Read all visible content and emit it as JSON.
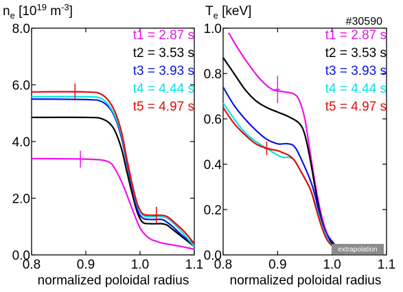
{
  "shot": "#30590",
  "extrapolation_label": "extrapolation",
  "colors": {
    "t1": "#ee11ee",
    "t2": "#000000",
    "t3": "#0a14e6",
    "t4": "#00e5e5",
    "t5": "#e60a0a"
  },
  "chart_data": [
    {
      "type": "line",
      "title": "n_e [10^19 m^-3]",
      "title_parts": {
        "base": "n",
        "sub": "e",
        "pre": " [10",
        "sup1": "19",
        "mid": " m",
        "sup2": "-3",
        "post": "]"
      },
      "xlabel": "normalized poloidal radius",
      "ylabel": "",
      "xlim": [
        0.8,
        1.1
      ],
      "ylim": [
        0.0,
        8.0
      ],
      "xticks": [
        "0.8",
        "0.9",
        "1.0",
        "1.1"
      ],
      "yticks": [
        "0.0",
        "2.0",
        "4.0",
        "6.0",
        "8.0"
      ],
      "legend_placement": "top-right",
      "series": [
        {
          "name": "t1 = 2.87 s",
          "key": "t1",
          "x": [
            0.8,
            0.9,
            0.94,
            0.955,
            0.97,
            0.98,
            0.99,
            1.0,
            1.01,
            1.02,
            1.03,
            1.04,
            1.06,
            1.08,
            1.1
          ],
          "y": [
            3.4,
            3.38,
            3.3,
            3.0,
            2.4,
            1.9,
            1.4,
            0.95,
            0.7,
            0.55,
            0.48,
            0.42,
            0.35,
            0.28,
            0.2
          ],
          "errorbar": {
            "x": 0.89,
            "y": 3.38,
            "dy": 0.3,
            "dx": 0.01
          }
        },
        {
          "name": "t2 = 3.53 s",
          "key": "t2",
          "x": [
            0.8,
            0.9,
            0.93,
            0.95,
            0.965,
            0.975,
            0.985,
            0.995,
            1.005,
            1.02,
            1.04,
            1.05,
            1.06,
            1.08,
            1.1
          ],
          "y": [
            4.85,
            4.85,
            4.8,
            4.5,
            3.8,
            3.0,
            2.2,
            1.5,
            1.15,
            1.1,
            1.1,
            1.05,
            0.9,
            0.6,
            0.3
          ]
        },
        {
          "name": "t3 = 3.93 s",
          "key": "t3",
          "x": [
            0.8,
            0.9,
            0.93,
            0.95,
            0.965,
            0.975,
            0.985,
            0.995,
            1.005,
            1.02,
            1.04,
            1.05,
            1.06,
            1.08,
            1.1
          ],
          "y": [
            5.5,
            5.48,
            5.4,
            5.0,
            4.2,
            3.3,
            2.4,
            1.6,
            1.3,
            1.25,
            1.25,
            1.15,
            1.0,
            0.65,
            0.4
          ]
        },
        {
          "name": "t4 = 4.44 s",
          "key": "t4",
          "x": [
            0.8,
            0.9,
            0.93,
            0.95,
            0.965,
            0.975,
            0.985,
            0.995,
            1.005,
            1.02,
            1.04,
            1.05,
            1.06,
            1.08,
            1.1
          ],
          "y": [
            5.58,
            5.58,
            5.5,
            5.05,
            4.3,
            3.4,
            2.5,
            1.75,
            1.4,
            1.35,
            1.35,
            1.3,
            1.15,
            0.75,
            0.3
          ]
        },
        {
          "name": "t5 = 4.97 s",
          "key": "t5",
          "x": [
            0.8,
            0.9,
            0.93,
            0.95,
            0.965,
            0.975,
            0.985,
            0.995,
            1.005,
            1.02,
            1.04,
            1.05,
            1.06,
            1.08,
            1.1
          ],
          "y": [
            5.75,
            5.75,
            5.65,
            5.2,
            4.4,
            3.45,
            2.55,
            1.8,
            1.45,
            1.4,
            1.4,
            1.35,
            1.2,
            0.85,
            0.4
          ],
          "errorbar": {
            "x": 0.88,
            "y": 5.75,
            "dy": 0.3,
            "dx": 0.01
          },
          "errorbar2": {
            "x": 1.03,
            "y": 1.4,
            "dy": 0.3,
            "dx": 0.01
          }
        }
      ]
    },
    {
      "type": "line",
      "title": "T_e [keV]",
      "title_parts": {
        "base": "T",
        "sub": "e",
        "post": " [keV]"
      },
      "xlabel": "normalized poloidal radius",
      "ylabel": "",
      "xlim": [
        0.8,
        1.1
      ],
      "ylim": [
        0.0,
        1.0
      ],
      "xticks": [
        "0.8",
        "0.9",
        "1.0",
        "1.1"
      ],
      "yticks": [
        "0.0",
        "0.2",
        "0.4",
        "0.6",
        "0.8",
        "1.0"
      ],
      "legend_placement": "top-right",
      "series": [
        {
          "name": "t1 = 2.87 s",
          "key": "t1",
          "x": [
            0.81,
            0.83,
            0.85,
            0.87,
            0.89,
            0.91,
            0.93,
            0.94,
            0.95,
            0.96,
            0.97,
            0.98,
            0.99,
            1.0,
            1.01
          ],
          "y": [
            0.98,
            0.9,
            0.83,
            0.77,
            0.73,
            0.72,
            0.71,
            0.68,
            0.6,
            0.45,
            0.3,
            0.18,
            0.1,
            0.06,
            0.03
          ],
          "errorbar": {
            "x": 0.9,
            "y": 0.73,
            "dy": 0.06,
            "dx": 0.005
          }
        },
        {
          "name": "t2 = 3.53 s",
          "key": "t2",
          "x": [
            0.8,
            0.82,
            0.84,
            0.86,
            0.88,
            0.9,
            0.92,
            0.94,
            0.95,
            0.96,
            0.97,
            0.98,
            0.99,
            1.0,
            1.01
          ],
          "y": [
            0.87,
            0.8,
            0.73,
            0.68,
            0.65,
            0.63,
            0.61,
            0.58,
            0.53,
            0.42,
            0.28,
            0.16,
            0.09,
            0.05,
            0.03
          ]
        },
        {
          "name": "t3 = 3.93 s",
          "key": "t3",
          "x": [
            0.8,
            0.82,
            0.84,
            0.86,
            0.88,
            0.9,
            0.91,
            0.92,
            0.93,
            0.94,
            0.96,
            0.97,
            0.98,
            0.99,
            1.0,
            1.01
          ],
          "y": [
            0.74,
            0.66,
            0.6,
            0.55,
            0.51,
            0.49,
            0.49,
            0.49,
            0.48,
            0.44,
            0.33,
            0.25,
            0.15,
            0.09,
            0.06,
            0.03
          ]
        },
        {
          "name": "t4 = 4.44 s",
          "key": "t4",
          "x": [
            0.8,
            0.82,
            0.84,
            0.86,
            0.88,
            0.9,
            0.91,
            0.92,
            0.93,
            0.94,
            0.96,
            0.97,
            0.98,
            0.99,
            1.0,
            1.01
          ],
          "y": [
            0.67,
            0.6,
            0.54,
            0.5,
            0.47,
            0.44,
            0.43,
            0.43,
            0.42,
            0.38,
            0.29,
            0.22,
            0.14,
            0.08,
            0.04,
            0.02
          ]
        },
        {
          "name": "t5 = 4.97 s",
          "key": "t5",
          "x": [
            0.8,
            0.82,
            0.84,
            0.86,
            0.88,
            0.9,
            0.91,
            0.92,
            0.93,
            0.94,
            0.96,
            0.97,
            0.98,
            0.99,
            1.0,
            1.01
          ],
          "y": [
            0.65,
            0.58,
            0.53,
            0.49,
            0.47,
            0.46,
            0.45,
            0.44,
            0.42,
            0.38,
            0.29,
            0.21,
            0.13,
            0.07,
            0.04,
            0.02
          ],
          "errorbar": {
            "x": 0.88,
            "y": 0.47,
            "dy": 0.03,
            "dx": 0.005
          }
        }
      ]
    }
  ]
}
